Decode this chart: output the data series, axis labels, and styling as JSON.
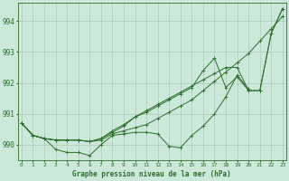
{
  "xlabel": "Graphe pression niveau de la mer (hPa)",
  "background_color": "#cce8d8",
  "grid_color": "#aaccb8",
  "line_color": "#2d6e2d",
  "hours": [
    0,
    1,
    2,
    3,
    4,
    5,
    6,
    7,
    8,
    9,
    10,
    11,
    12,
    13,
    14,
    15,
    16,
    17,
    18,
    19,
    20,
    21,
    22,
    23
  ],
  "series1": [
    990.7,
    990.3,
    990.2,
    989.85,
    989.75,
    989.75,
    989.65,
    990.0,
    990.3,
    990.35,
    990.4,
    990.4,
    990.35,
    989.95,
    989.9,
    990.3,
    990.6,
    991.0,
    991.55,
    992.25,
    991.8,
    null,
    null,
    null
  ],
  "series2": [
    990.7,
    990.3,
    990.2,
    990.15,
    990.15,
    990.15,
    990.1,
    990.15,
    990.35,
    990.45,
    990.55,
    990.65,
    990.85,
    991.05,
    991.25,
    991.45,
    991.75,
    992.05,
    992.35,
    992.65,
    992.95,
    993.35,
    993.75,
    994.15
  ],
  "series3": [
    990.7,
    990.3,
    990.2,
    990.15,
    990.15,
    990.15,
    990.1,
    990.2,
    990.45,
    990.65,
    990.9,
    991.1,
    991.3,
    991.5,
    991.7,
    991.9,
    992.1,
    992.3,
    992.5,
    992.5,
    991.75,
    991.75,
    993.6,
    994.4
  ],
  "series4": [
    990.7,
    990.3,
    990.2,
    990.15,
    990.15,
    990.15,
    990.1,
    990.2,
    990.4,
    990.6,
    990.9,
    991.05,
    991.25,
    991.45,
    991.65,
    991.85,
    992.4,
    992.8,
    991.85,
    992.2,
    991.75,
    991.75,
    993.6,
    994.4
  ],
  "ylim": [
    989.5,
    994.6
  ],
  "yticks": [
    990,
    991,
    992,
    993,
    994
  ],
  "xlim": [
    -0.3,
    23.3
  ],
  "figsize": [
    3.2,
    2.0
  ],
  "dpi": 100
}
